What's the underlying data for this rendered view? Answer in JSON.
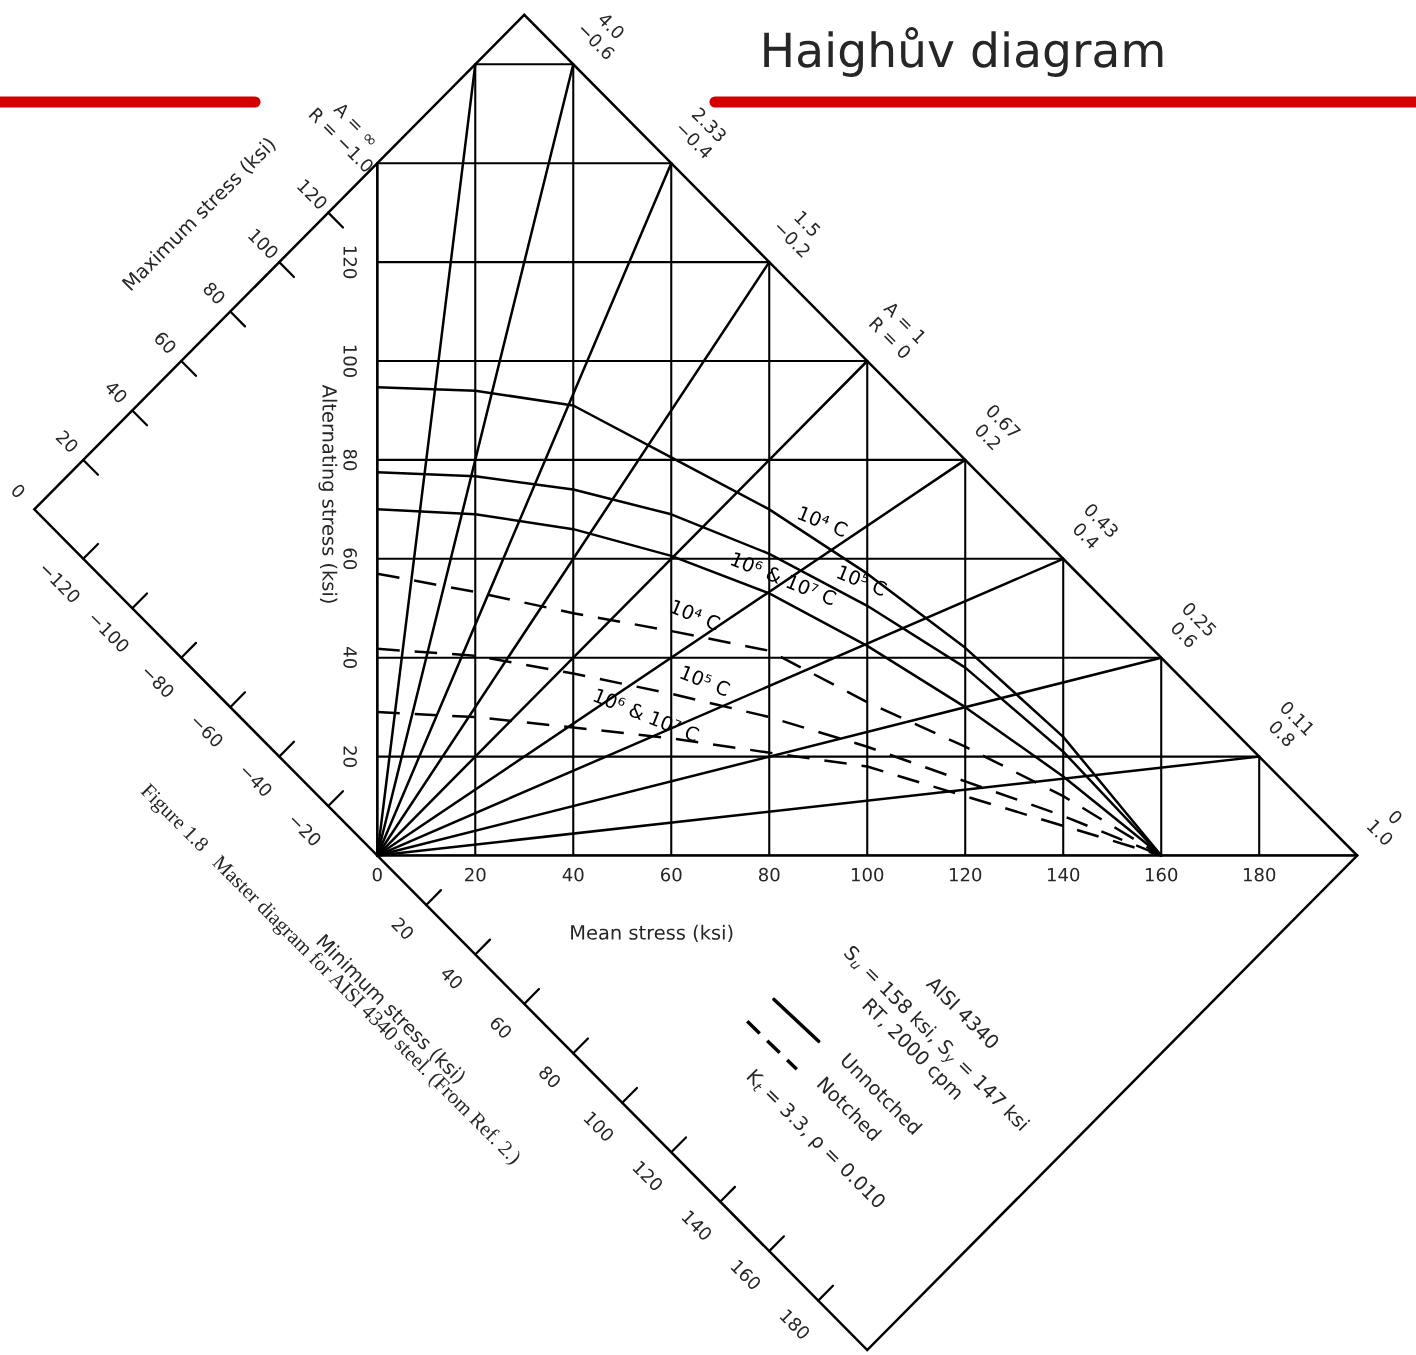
{
  "chart_data": {
    "type": "line",
    "title": "Haighův diagram",
    "xlabel": "Mean stress (ksi)",
    "ylabel": "Alternating stress (ksi)",
    "xlim": [
      -77,
      212
    ],
    "ylim": [
      -101,
      173
    ],
    "xticks": [
      0,
      20,
      40,
      60,
      80,
      100,
      120,
      140,
      160,
      180
    ],
    "yticks": [
      {
        "value": 0,
        "label": null
      },
      20,
      40,
      60,
      80,
      100,
      120,
      {
        "value": 140,
        "label": null
      },
      {
        "value": 160,
        "label": null
      }
    ],
    "grid": true,
    "series": [
      {
        "name": "10⁴ C",
        "color": "#000000",
        "line_style": "solid",
        "x": [
          0,
          20,
          40,
          60,
          80,
          100,
          120,
          140,
          160
        ],
        "values": [
          94.7,
          94,
          91,
          80.5,
          70,
          57,
          42,
          24,
          0
        ]
      },
      {
        "name": "10⁵ C",
        "color": "#000000",
        "line_style": "solid",
        "x": [
          0,
          20,
          40,
          60,
          80,
          100,
          120,
          140,
          160
        ],
        "values": [
          77.5,
          76.7,
          74,
          69,
          61,
          50.5,
          38,
          21,
          0
        ]
      },
      {
        "name": "10⁶ & 10⁷ C",
        "color": "#000000",
        "line_style": "solid",
        "x": [
          0,
          20,
          40,
          60,
          80,
          100,
          120,
          140,
          160
        ],
        "values": [
          70,
          69,
          66,
          60.6,
          53,
          42.4,
          30,
          16,
          0
        ]
      },
      {
        "name": "10⁴ C",
        "color": "#000000",
        "line_style": "dashed",
        "x": [
          0,
          20,
          40,
          60,
          80,
          100,
          120,
          140,
          160
        ],
        "values": [
          57,
          53.3,
          49,
          45.4,
          41.4,
          31,
          22,
          12,
          0
        ]
      },
      {
        "name": "10⁵ C",
        "color": "#000000",
        "line_style": "dashed",
        "x": [
          0,
          20,
          40,
          60,
          80,
          100,
          120,
          140,
          160
        ],
        "values": [
          41.8,
          40.4,
          36.8,
          32.7,
          28,
          22,
          15,
          8,
          0
        ]
      },
      {
        "name": "10⁶ & 10⁷ C",
        "color": "#000000",
        "line_style": "dashed",
        "x": [
          0,
          20,
          40,
          60,
          80,
          100,
          120,
          140,
          160
        ],
        "values": [
          29,
          28,
          25.9,
          23.7,
          20.8,
          18,
          12,
          6,
          0
        ]
      },
      {
        "color": "#000000",
        "line_style": "solid",
        "x": [
          0,
          0
        ],
        "values": [
          0,
          140
        ]
      },
      {
        "color": "#000000",
        "line_style": "solid",
        "x": [
          0,
          20
        ],
        "values": [
          0,
          160
        ]
      },
      {
        "color": "#000000",
        "line_style": "solid",
        "x": [
          0,
          40
        ],
        "values": [
          0,
          160
        ]
      },
      {
        "color": "#000000",
        "line_style": "solid",
        "x": [
          0,
          60
        ],
        "values": [
          0,
          140
        ]
      },
      {
        "color": "#000000",
        "line_style": "solid",
        "x": [
          0,
          80
        ],
        "values": [
          0,
          120
        ]
      },
      {
        "color": "#000000",
        "line_style": "solid",
        "x": [
          0,
          100
        ],
        "values": [
          0,
          100
        ]
      },
      {
        "color": "#000000",
        "line_style": "solid",
        "x": [
          0,
          120
        ],
        "values": [
          0,
          80
        ]
      },
      {
        "color": "#000000",
        "line_style": "solid",
        "x": [
          0,
          140
        ],
        "values": [
          0,
          60
        ]
      },
      {
        "color": "#000000",
        "line_style": "solid",
        "x": [
          0,
          160
        ],
        "values": [
          0,
          40
        ]
      },
      {
        "color": "#000000",
        "line_style": "solid",
        "x": [
          0,
          180
        ],
        "values": [
          0,
          20
        ]
      },
      {
        "color": "#000000",
        "line_style": "solid",
        "x": [
          0,
          200
        ],
        "values": [
          0,
          0
        ]
      }
    ],
    "annotations": [
      "Maximum stress (ksi)",
      "Minimum stress (ksi)",
      "AISI 4340",
      "S$_{u}$ = 158 ksi, S$_{y}$ = 147 ksi",
      "RT, 2000 cpm",
      "Unnotched",
      "Notched",
      "K$_{t}$ = 3.3, ρ = 0.010",
      "Figure 1.8   Master diagram for AISI 4340 steel. (From Ref. 2.)",
      {
        "text": "A = ∞\nR = −1.0",
        "x": 0,
        "y": 140
      },
      {
        "text": "4.0\n−0.6",
        "x": 40,
        "y": 160
      },
      {
        "text": "2.33\n−0.4",
        "x": 60,
        "y": 140
      },
      {
        "text": "1.5\n−0.2",
        "x": 80,
        "y": 120
      },
      {
        "text": "A = 1\nR = 0",
        "x": 100,
        "y": 100
      },
      {
        "text": "0.67\n0.2",
        "x": 120,
        "y": 80
      },
      {
        "text": "0.43\n0.4",
        "x": 140,
        "y": 60
      },
      {
        "text": "0.25\n0.6",
        "x": 160,
        "y": 40
      },
      {
        "text": "0.11\n0.8",
        "x": 180,
        "y": 20
      },
      {
        "text": "0\n1.0",
        "x": 200,
        "y": 0
      },
      "0",
      "20",
      "40",
      "60",
      "80",
      "100",
      "120",
      "−120",
      "−100",
      "−80",
      "−60",
      "−40",
      "−20",
      "20",
      "40",
      "60",
      "80",
      "100",
      "120",
      "140",
      "160",
      "180"
    ]
  }
}
